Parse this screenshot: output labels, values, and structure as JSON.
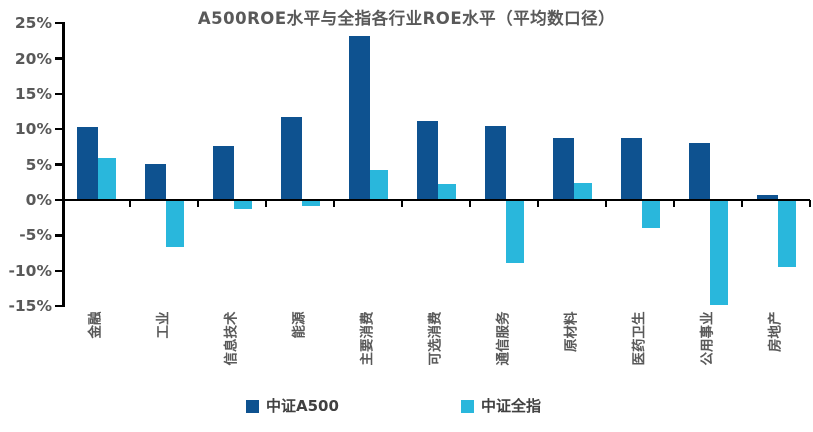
{
  "chart_data": {
    "type": "bar",
    "title": "A500ROE水平与全指各行业ROE水平（平均数口径）",
    "categories": [
      "金融",
      "工业",
      "信息技术",
      "能源",
      "主要消费",
      "可选消费",
      "通信服务",
      "原材料",
      "医药卫生",
      "公用事业",
      "房地产"
    ],
    "series": [
      {
        "name": "中证A500",
        "color": "#0E5290",
        "values": [
          10.3,
          5.1,
          7.6,
          11.8,
          23.2,
          11.1,
          10.4,
          8.8,
          8.8,
          8.1,
          0.7
        ]
      },
      {
        "name": "中证全指",
        "color": "#29B7DC",
        "values": [
          6.0,
          -6.6,
          -1.3,
          -0.9,
          4.2,
          2.2,
          -8.9,
          2.4,
          -3.9,
          -14.8,
          -9.5
        ]
      }
    ],
    "ylabel": "",
    "xlabel": "",
    "ylim": [
      -15,
      25
    ],
    "ytick_step": 5,
    "ytick_labels": [
      "25%",
      "20%",
      "15%",
      "10%",
      "5%",
      "0%",
      "-5%",
      "-10%",
      "-15%"
    ],
    "grid": false,
    "legend_position": "bottom",
    "axis_color": "#000000",
    "label_color": "#595959"
  },
  "legend": {
    "items": [
      {
        "label": "中证A500",
        "color": "#0E5290"
      },
      {
        "label": "中证全指",
        "color": "#29B7DC"
      }
    ]
  }
}
